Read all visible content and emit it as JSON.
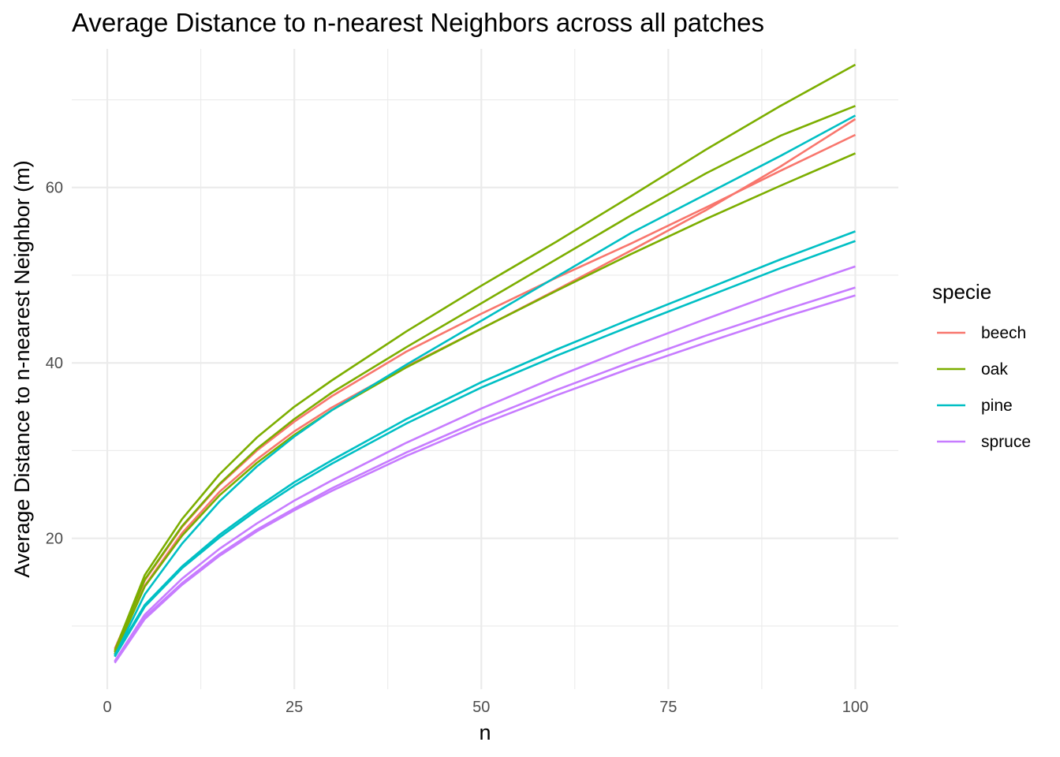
{
  "chart_data": {
    "type": "line",
    "title": "Average Distance to n-nearest Neighbors across all patches",
    "xlabel": "n",
    "ylabel": "Average Distance to n-nearest Neighbor (m)",
    "xlim": [
      -4.75,
      105.75
    ],
    "ylim": [
      2.8,
      75.8
    ],
    "x_ticks": [
      0,
      25,
      50,
      75,
      100
    ],
    "y_ticks": [
      20,
      40,
      60
    ],
    "x_minor": [
      12.5,
      37.5,
      62.5,
      87.5
    ],
    "y_minor": [
      10,
      30,
      50,
      70
    ],
    "grid": true,
    "legend": {
      "title": "specie",
      "position": "right",
      "entries": [
        {
          "label": "beech",
          "color": "#F8766D"
        },
        {
          "label": "oak",
          "color": "#7CAE00"
        },
        {
          "label": "pine",
          "color": "#00BFC4"
        },
        {
          "label": "spruce",
          "color": "#C77CFF"
        }
      ]
    },
    "x": [
      1,
      5,
      10,
      15,
      20,
      25,
      30,
      40,
      50,
      60,
      70,
      80,
      90,
      100
    ],
    "series": [
      {
        "name": "beech",
        "color": "#F8766D",
        "values": [
          7.4,
          15.2,
          21.3,
          26.1,
          30.0,
          33.3,
          36.2,
          41.3,
          45.6,
          49.7,
          53.6,
          57.7,
          61.9,
          66.0
        ]
      },
      {
        "name": "beech",
        "color": "#F8766D",
        "values": [
          7.0,
          14.6,
          20.6,
          25.3,
          29.0,
          32.2,
          34.9,
          39.6,
          43.9,
          48.3,
          52.8,
          57.4,
          62.4,
          67.8
        ]
      },
      {
        "name": "oak",
        "color": "#7CAE00",
        "values": [
          7.2,
          15.8,
          22.2,
          27.3,
          31.5,
          35.0,
          38.0,
          43.6,
          48.8,
          53.8,
          59.0,
          64.3,
          69.3,
          74.0
        ]
      },
      {
        "name": "oak",
        "color": "#7CAE00",
        "values": [
          7.0,
          15.3,
          21.4,
          26.2,
          30.2,
          33.6,
          36.6,
          41.8,
          46.8,
          51.8,
          56.8,
          61.6,
          65.9,
          69.3
        ]
      },
      {
        "name": "oak",
        "color": "#7CAE00",
        "values": [
          6.8,
          14.5,
          20.3,
          24.9,
          28.6,
          31.8,
          34.6,
          39.5,
          43.9,
          48.2,
          52.4,
          56.4,
          60.2,
          63.9
        ]
      },
      {
        "name": "pine",
        "color": "#00BFC4",
        "values": [
          6.6,
          13.6,
          19.4,
          24.2,
          28.2,
          31.6,
          34.6,
          39.8,
          44.8,
          49.8,
          54.8,
          59.2,
          63.6,
          68.2
        ]
      },
      {
        "name": "pine",
        "color": "#00BFC4",
        "values": [
          6.7,
          12.4,
          16.8,
          20.4,
          23.5,
          26.4,
          28.9,
          33.6,
          37.8,
          41.5,
          45.0,
          48.4,
          51.8,
          55.0
        ]
      },
      {
        "name": "pine",
        "color": "#00BFC4",
        "values": [
          6.5,
          12.2,
          16.6,
          20.1,
          23.2,
          26.0,
          28.5,
          33.1,
          37.2,
          40.8,
          44.2,
          47.5,
          50.8,
          53.9
        ]
      },
      {
        "name": "spruce",
        "color": "#C77CFF",
        "values": [
          6.0,
          11.3,
          15.4,
          18.8,
          21.7,
          24.3,
          26.6,
          30.9,
          34.8,
          38.4,
          41.8,
          45.0,
          48.1,
          51.0
        ]
      },
      {
        "name": "spruce",
        "color": "#C77CFF",
        "values": [
          5.9,
          11.0,
          14.9,
          18.2,
          21.0,
          23.4,
          25.7,
          29.8,
          33.5,
          36.9,
          40.1,
          43.1,
          45.9,
          48.6
        ]
      },
      {
        "name": "spruce",
        "color": "#C77CFF",
        "values": [
          5.8,
          10.8,
          14.7,
          18.0,
          20.8,
          23.2,
          25.4,
          29.4,
          33.0,
          36.3,
          39.4,
          42.3,
          45.1,
          47.7
        ]
      }
    ]
  }
}
